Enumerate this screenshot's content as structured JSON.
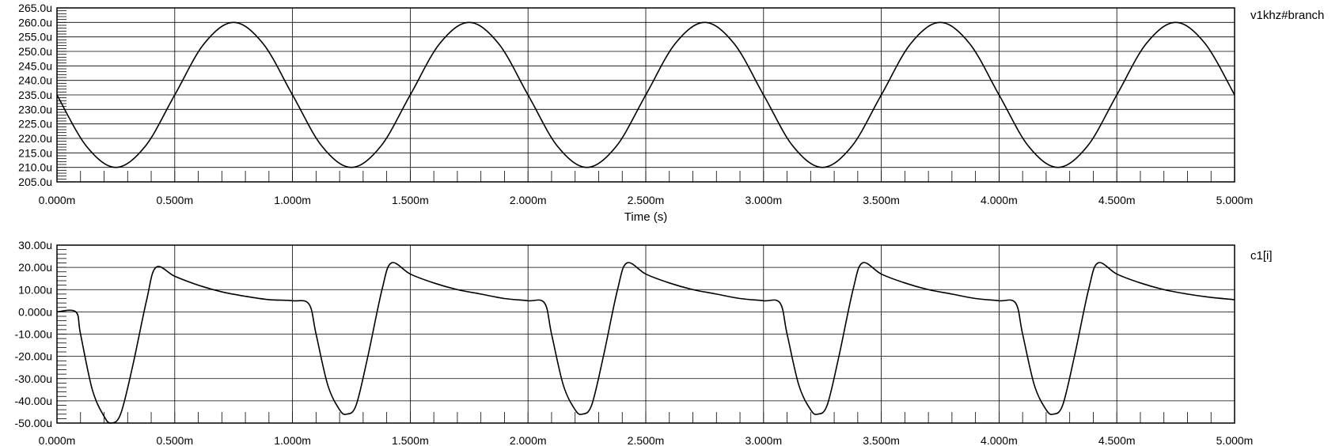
{
  "chart_data": [
    {
      "type": "line",
      "title": "",
      "xlabel": "Time (s)",
      "ylabel": "",
      "legend": "top-right",
      "grid": true,
      "xlim": [
        0,
        5.0
      ],
      "ylim": [
        205.0,
        265.0
      ],
      "x_tick_values": [
        0,
        0.5,
        1.0,
        1.5,
        2.0,
        2.5,
        3.0,
        3.5,
        4.0,
        4.5,
        5.0
      ],
      "x_tick_labels": [
        "0.000m",
        "0.500m",
        "1.000m",
        "1.500m",
        "2.000m",
        "2.500m",
        "3.000m",
        "3.500m",
        "4.000m",
        "4.500m",
        "5.000m"
      ],
      "y_tick_values": [
        205,
        210,
        215,
        220,
        225,
        230,
        235,
        240,
        245,
        250,
        255,
        260,
        265
      ],
      "y_tick_labels": [
        "205.0u",
        "210.0u",
        "215.0u",
        "220.0u",
        "225.0u",
        "230.0u",
        "235.0u",
        "240.0u",
        "245.0u",
        "250.0u",
        "255.0u",
        "260.0u",
        "265.0u"
      ],
      "series": [
        {
          "name": "v1khz#branch",
          "x": [
            0,
            0.125,
            0.25,
            0.375,
            0.5,
            0.625,
            0.75,
            0.875,
            1.0,
            1.125,
            1.25,
            1.375,
            1.5,
            1.625,
            1.75,
            1.875,
            2.0,
            2.125,
            2.25,
            2.375,
            2.5,
            2.625,
            2.75,
            2.875,
            3.0,
            3.125,
            3.25,
            3.375,
            3.5,
            3.625,
            3.75,
            3.875,
            4.0,
            4.125,
            4.25,
            4.375,
            4.5,
            4.625,
            4.75,
            4.875,
            5.0
          ],
          "y": [
            235,
            217.3,
            210,
            217.3,
            235,
            252.7,
            260,
            252.7,
            235,
            217.3,
            210,
            217.3,
            235,
            252.7,
            260,
            252.7,
            235,
            217.3,
            210,
            217.3,
            235,
            252.7,
            260,
            252.7,
            235,
            217.3,
            210,
            217.3,
            235,
            252.7,
            260,
            252.7,
            235,
            217.3,
            210,
            217.3,
            235,
            252.7,
            260,
            252.7,
            235
          ]
        }
      ]
    },
    {
      "type": "line",
      "title": "",
      "xlabel": "",
      "ylabel": "",
      "legend": "top-right",
      "grid": true,
      "xlim": [
        0,
        5.0
      ],
      "ylim": [
        -50.0,
        30.0
      ],
      "x_tick_values": [
        0,
        0.5,
        1.0,
        1.5,
        2.0,
        2.5,
        3.0,
        3.5,
        4.0,
        4.5,
        5.0
      ],
      "x_tick_labels": [
        "0.000m",
        "0.500m",
        "1.000m",
        "1.500m",
        "2.000m",
        "2.500m",
        "3.000m",
        "3.500m",
        "4.000m",
        "4.500m",
        "5.000m"
      ],
      "y_tick_values": [
        -50,
        -40,
        -30,
        -20,
        -10,
        0,
        10,
        20,
        30
      ],
      "y_tick_labels": [
        "-50.00u",
        "-40.00u",
        "-30.00u",
        "-20.00u",
        "-10.00u",
        "0.000u",
        "10.00u",
        "20.00u",
        "30.00u"
      ],
      "series": [
        {
          "name": "c1[i]",
          "x": [
            0,
            0.08,
            0.1,
            0.15,
            0.2,
            0.23,
            0.27,
            0.32,
            0.38,
            0.42,
            0.5,
            0.6,
            0.7,
            0.8,
            0.9,
            1.0,
            1.07,
            1.1,
            1.15,
            1.2,
            1.23,
            1.27,
            1.32,
            1.38,
            1.42,
            1.5,
            1.6,
            1.7,
            1.8,
            1.9,
            2.0,
            2.07,
            2.1,
            2.15,
            2.2,
            2.23,
            2.27,
            2.32,
            2.38,
            2.42,
            2.5,
            2.6,
            2.7,
            2.8,
            2.9,
            3.0,
            3.07,
            3.1,
            3.15,
            3.2,
            3.23,
            3.27,
            3.32,
            3.38,
            3.42,
            3.5,
            3.6,
            3.7,
            3.8,
            3.9,
            4.0,
            4.07,
            4.1,
            4.15,
            4.2,
            4.23,
            4.27,
            4.32,
            4.38,
            4.42,
            4.5,
            4.6,
            4.7,
            4.8,
            4.9,
            5.0
          ],
          "y": [
            0,
            0,
            -10,
            -35,
            -47,
            -50,
            -46,
            -25,
            5,
            20,
            16,
            12,
            9,
            7,
            5.5,
            5,
            3.5,
            -10,
            -33,
            -44,
            -46,
            -42,
            -20,
            10,
            22,
            17,
            13,
            10,
            8,
            6,
            5,
            4,
            -10,
            -33,
            -44,
            -46,
            -42,
            -20,
            10,
            22,
            17,
            13,
            10,
            8,
            6,
            5,
            4,
            -10,
            -33,
            -44,
            -46,
            -42,
            -20,
            10,
            22,
            17,
            13,
            10,
            8,
            6,
            5,
            4,
            -10,
            -33,
            -44,
            -46,
            -42,
            -20,
            10,
            22,
            17,
            13,
            10,
            8,
            6.5,
            5.5
          ]
        }
      ]
    }
  ]
}
